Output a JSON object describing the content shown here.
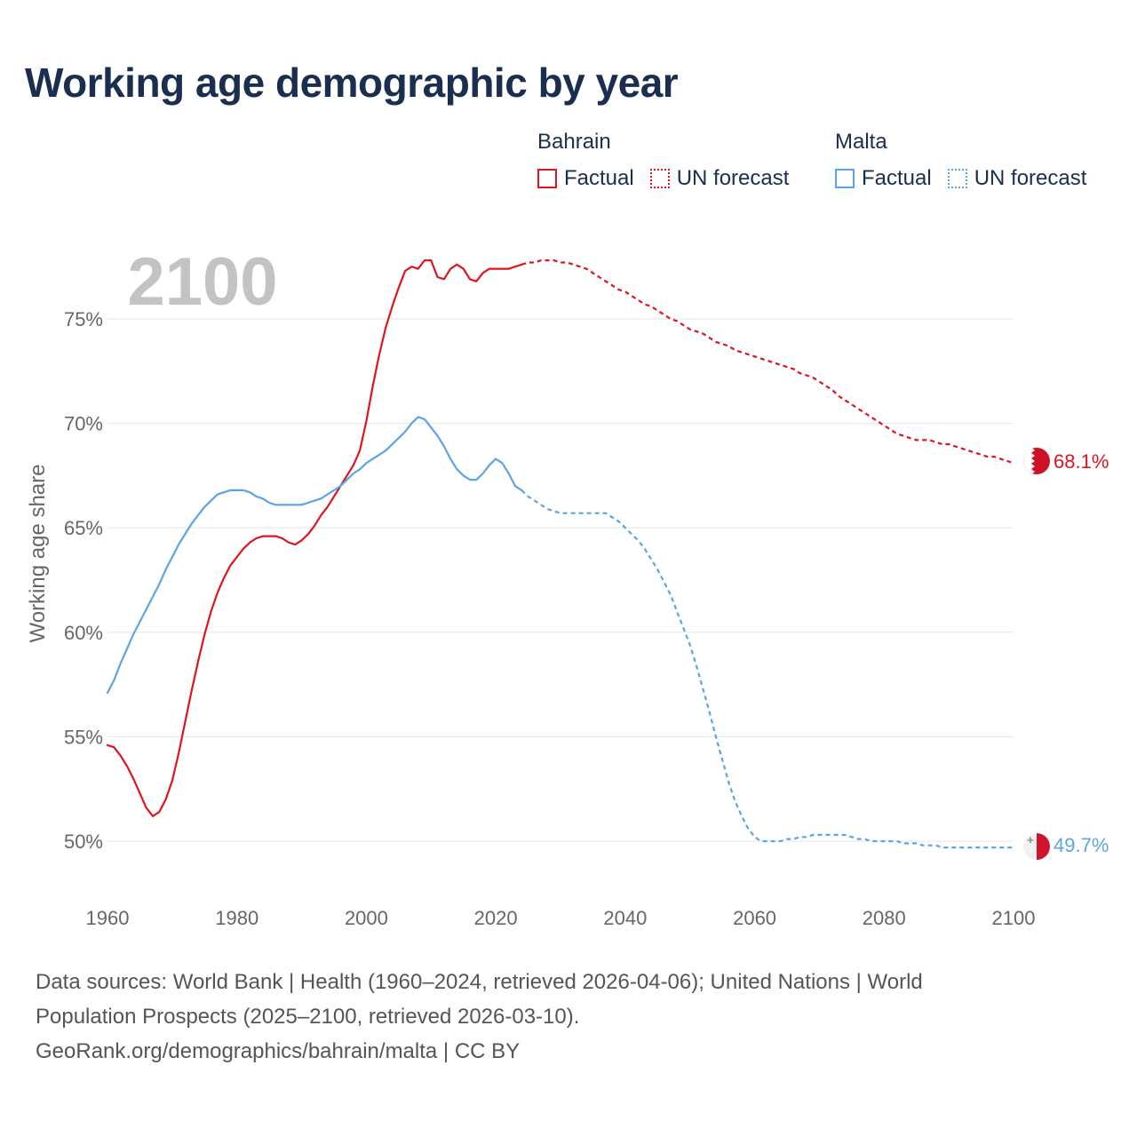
{
  "title": "Working age demographic by year",
  "legend": {
    "groups": [
      {
        "name": "Bahrain",
        "color": "#e0141e",
        "factual_label": "Factual",
        "forecast_label": "UN forecast"
      },
      {
        "name": "Malta",
        "color": "#5ba4e5",
        "factual_label": "Factual",
        "forecast_label": "UN forecast"
      }
    ]
  },
  "year_watermark": "2100",
  "footer": {
    "line1": "Data sources: World Bank | Health (1960–2024, retrieved 2026-04-06); United Nations | World",
    "line2": "Population Prospects (2025–2100, retrieved 2026-03-10).",
    "line3": "GeoRank.org/demographics/bahrain/malta | CC BY"
  },
  "chart_data": {
    "type": "line",
    "title": "Working age demographic by year",
    "xlabel": "",
    "ylabel": "Working age share",
    "xlim": [
      1960,
      2100
    ],
    "ylim": [
      47.5,
      78
    ],
    "x_ticks": [
      1960,
      1980,
      2000,
      2020,
      2040,
      2060,
      2080,
      2100
    ],
    "y_ticks": [
      50,
      55,
      60,
      65,
      70,
      75
    ],
    "y_tick_labels": [
      "50%",
      "55%",
      "60%",
      "65%",
      "70%",
      "75%"
    ],
    "grid": true,
    "series": [
      {
        "name": "Bahrain",
        "color": "#e0141e",
        "end_label": "68.1%",
        "factual": {
          "x": [
            1960,
            1961,
            1962,
            1963,
            1964,
            1965,
            1966,
            1967,
            1968,
            1969,
            1970,
            1971,
            1972,
            1973,
            1974,
            1975,
            1976,
            1977,
            1978,
            1979,
            1980,
            1981,
            1982,
            1983,
            1984,
            1985,
            1986,
            1987,
            1988,
            1989,
            1990,
            1991,
            1992,
            1993,
            1994,
            1995,
            1996,
            1997,
            1998,
            1999,
            2000,
            2001,
            2002,
            2003,
            2004,
            2005,
            2006,
            2007,
            2008,
            2009,
            2010,
            2011,
            2012,
            2013,
            2014,
            2015,
            2016,
            2017,
            2018,
            2019,
            2020,
            2021,
            2022,
            2023,
            2024
          ],
          "y": [
            54.6,
            54.5,
            54.1,
            53.6,
            53.0,
            52.3,
            51.6,
            51.2,
            51.4,
            52.0,
            52.9,
            54.2,
            55.7,
            57.2,
            58.6,
            59.9,
            61.0,
            61.9,
            62.6,
            63.2,
            63.6,
            64.0,
            64.3,
            64.5,
            64.6,
            64.6,
            64.6,
            64.5,
            64.3,
            64.2,
            64.4,
            64.7,
            65.1,
            65.6,
            66.0,
            66.5,
            67.0,
            67.5,
            68.0,
            68.7,
            70.1,
            71.8,
            73.3,
            74.6,
            75.6,
            76.5,
            77.3,
            77.5,
            77.4,
            77.8,
            77.8,
            77.0,
            76.9,
            77.4,
            77.6,
            77.4,
            76.9,
            76.8,
            77.2,
            77.4,
            77.4,
            77.4,
            77.4,
            77.5,
            77.6
          ]
        },
        "forecast": {
          "x": [
            2024,
            2025,
            2026,
            2027,
            2028,
            2029,
            2030,
            2031,
            2032,
            2033,
            2034,
            2035,
            2036,
            2037,
            2038,
            2039,
            2040,
            2041,
            2042,
            2043,
            2044,
            2045,
            2046,
            2047,
            2048,
            2049,
            2050,
            2051,
            2052,
            2053,
            2054,
            2055,
            2056,
            2057,
            2058,
            2059,
            2060,
            2061,
            2062,
            2063,
            2064,
            2065,
            2066,
            2067,
            2068,
            2069,
            2070,
            2071,
            2072,
            2073,
            2074,
            2075,
            2076,
            2077,
            2078,
            2079,
            2080,
            2081,
            2082,
            2083,
            2084,
            2085,
            2086,
            2087,
            2088,
            2089,
            2090,
            2091,
            2092,
            2093,
            2094,
            2095,
            2096,
            2097,
            2098,
            2099,
            2100
          ],
          "y": [
            77.6,
            77.7,
            77.7,
            77.8,
            77.8,
            77.8,
            77.7,
            77.7,
            77.6,
            77.5,
            77.4,
            77.2,
            77.0,
            76.8,
            76.6,
            76.4,
            76.3,
            76.1,
            75.9,
            75.7,
            75.6,
            75.4,
            75.2,
            75.0,
            74.9,
            74.7,
            74.5,
            74.4,
            74.3,
            74.1,
            73.9,
            73.8,
            73.7,
            73.5,
            73.4,
            73.3,
            73.2,
            73.1,
            73.0,
            72.9,
            72.8,
            72.7,
            72.6,
            72.4,
            72.3,
            72.2,
            72.0,
            71.8,
            71.6,
            71.3,
            71.1,
            70.9,
            70.7,
            70.5,
            70.3,
            70.1,
            69.9,
            69.7,
            69.5,
            69.4,
            69.3,
            69.2,
            69.2,
            69.2,
            69.1,
            69.0,
            69.0,
            68.9,
            68.8,
            68.7,
            68.6,
            68.5,
            68.4,
            68.4,
            68.3,
            68.2,
            68.1
          ]
        }
      },
      {
        "name": "Malta",
        "color": "#5ba4e5",
        "end_label": "49.7%",
        "factual": {
          "x": [
            1960,
            1961,
            1962,
            1963,
            1964,
            1965,
            1966,
            1967,
            1968,
            1969,
            1970,
            1971,
            1972,
            1973,
            1974,
            1975,
            1976,
            1977,
            1978,
            1979,
            1980,
            1981,
            1982,
            1983,
            1984,
            1985,
            1986,
            1987,
            1988,
            1989,
            1990,
            1991,
            1992,
            1993,
            1994,
            1995,
            1996,
            1997,
            1998,
            1999,
            2000,
            2001,
            2002,
            2003,
            2004,
            2005,
            2006,
            2007,
            2008,
            2009,
            2010,
            2011,
            2012,
            2013,
            2014,
            2015,
            2016,
            2017,
            2018,
            2019,
            2020,
            2021,
            2022,
            2023,
            2024
          ],
          "y": [
            57.1,
            57.7,
            58.5,
            59.2,
            59.9,
            60.5,
            61.1,
            61.7,
            62.3,
            63.0,
            63.6,
            64.2,
            64.7,
            65.2,
            65.6,
            66.0,
            66.3,
            66.6,
            66.7,
            66.8,
            66.8,
            66.8,
            66.7,
            66.5,
            66.4,
            66.2,
            66.1,
            66.1,
            66.1,
            66.1,
            66.1,
            66.2,
            66.3,
            66.4,
            66.6,
            66.8,
            67.0,
            67.3,
            67.6,
            67.8,
            68.1,
            68.3,
            68.5,
            68.7,
            69.0,
            69.3,
            69.6,
            70.0,
            70.3,
            70.2,
            69.8,
            69.4,
            68.9,
            68.3,
            67.8,
            67.5,
            67.3,
            67.3,
            67.6,
            68.0,
            68.3,
            68.1,
            67.6,
            67.0,
            66.8
          ]
        },
        "forecast": {
          "x": [
            2024,
            2025,
            2026,
            2027,
            2028,
            2029,
            2030,
            2031,
            2032,
            2033,
            2034,
            2035,
            2036,
            2037,
            2038,
            2039,
            2040,
            2041,
            2042,
            2043,
            2044,
            2045,
            2046,
            2047,
            2048,
            2049,
            2050,
            2051,
            2052,
            2053,
            2054,
            2055,
            2056,
            2057,
            2058,
            2059,
            2060,
            2061,
            2062,
            2063,
            2064,
            2065,
            2066,
            2067,
            2068,
            2069,
            2070,
            2071,
            2072,
            2073,
            2074,
            2075,
            2076,
            2077,
            2078,
            2079,
            2080,
            2081,
            2082,
            2083,
            2084,
            2085,
            2086,
            2087,
            2088,
            2089,
            2090,
            2091,
            2092,
            2093,
            2094,
            2095,
            2096,
            2097,
            2098,
            2099,
            2100
          ],
          "y": [
            66.8,
            66.5,
            66.3,
            66.1,
            65.9,
            65.8,
            65.7,
            65.7,
            65.7,
            65.7,
            65.7,
            65.7,
            65.7,
            65.7,
            65.5,
            65.3,
            65.0,
            64.7,
            64.4,
            64.0,
            63.5,
            63.0,
            62.4,
            61.8,
            61.0,
            60.2,
            59.4,
            58.4,
            57.3,
            56.2,
            55.0,
            53.9,
            52.8,
            51.9,
            51.2,
            50.6,
            50.2,
            50.0,
            50.0,
            50.0,
            50.0,
            50.1,
            50.1,
            50.2,
            50.2,
            50.3,
            50.3,
            50.3,
            50.3,
            50.3,
            50.3,
            50.2,
            50.1,
            50.1,
            50.0,
            50.0,
            50.0,
            50.0,
            50.0,
            49.9,
            49.9,
            49.9,
            49.8,
            49.8,
            49.8,
            49.7,
            49.7,
            49.7,
            49.7,
            49.7,
            49.7,
            49.7,
            49.7,
            49.7,
            49.7,
            49.7,
            49.7
          ]
        }
      }
    ]
  }
}
